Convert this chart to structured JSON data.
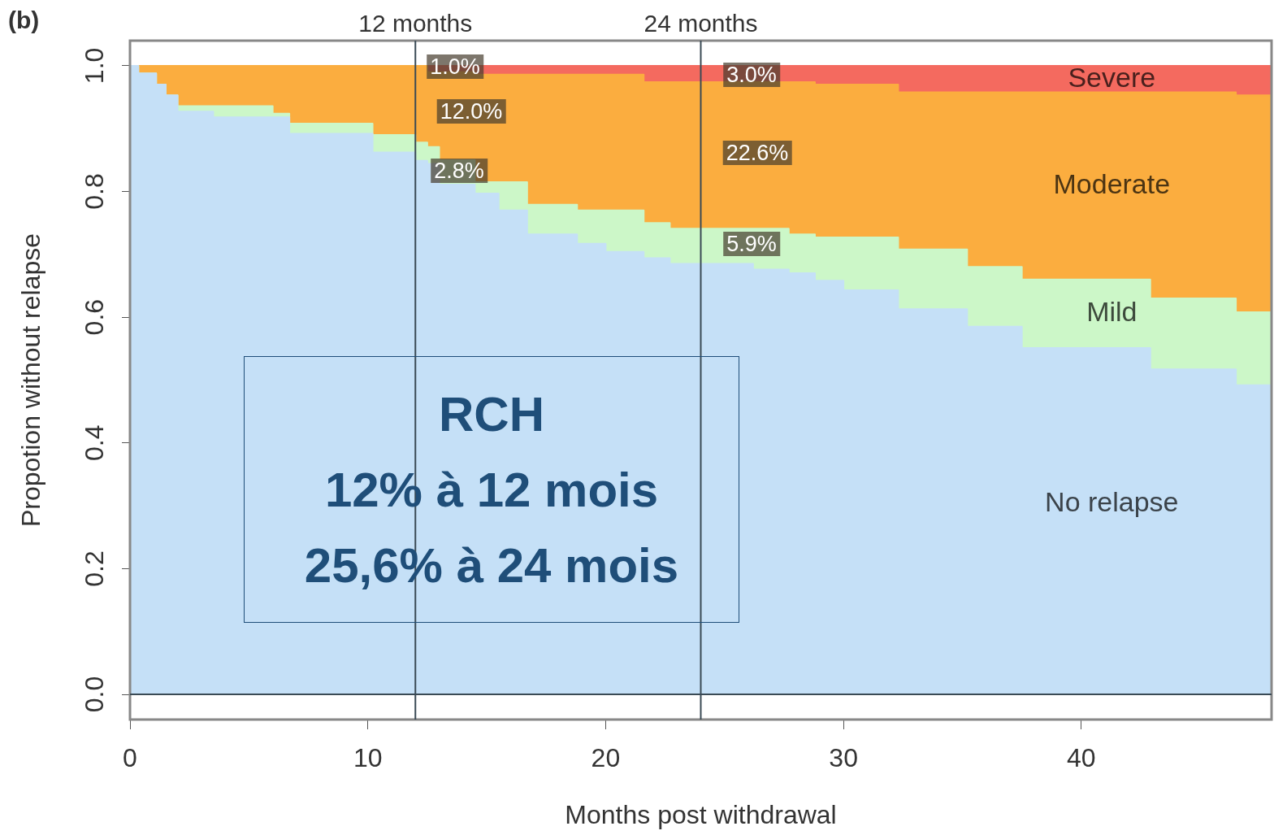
{
  "chart_data": {
    "type": "area",
    "stacked": true,
    "xlabel": "Months post withdrawal",
    "ylabel": "Propotion without relapse",
    "x": [
      0,
      0.35,
      1.1,
      1.5,
      2,
      3.5,
      6,
      6.7,
      10.2,
      12,
      12.5,
      13,
      14.5,
      15.5,
      16.7,
      18.8,
      20,
      21.6,
      22.7,
      26.2,
      27.7,
      28.8,
      30,
      32.3,
      35.2,
      37.5,
      42.9,
      46.5,
      48
    ],
    "series": [
      {
        "name": "No relapse",
        "color": "#c5e0f7",
        "values": [
          1,
          0.988,
          0.97,
          0.953,
          0.927,
          0.918,
          0.918,
          0.892,
          0.862,
          0.849,
          0.844,
          0.811,
          0.797,
          0.77,
          0.732,
          0.717,
          0.704,
          0.694,
          0.685,
          0.676,
          0.67,
          0.658,
          0.643,
          0.613,
          0.585,
          0.551,
          0.517,
          0.492,
          0.492
        ]
      },
      {
        "name": "Mild",
        "color": "#ccf7c8",
        "values": [
          0,
          0,
          0,
          0,
          0.009,
          0.018,
          0.006,
          0.016,
          0.028,
          0.029,
          0.027,
          0.039,
          0.018,
          0.045,
          0.047,
          0.053,
          0.066,
          0.056,
          0.056,
          0.065,
          0.062,
          0.069,
          0.084,
          0.095,
          0.095,
          0.109,
          0.113,
          0.116,
          0.116
        ]
      },
      {
        "name": "Moderate",
        "color": "#fbad3f",
        "values": [
          0,
          0.012,
          0.03,
          0.047,
          0.064,
          0.064,
          0.076,
          0.092,
          0.11,
          0.122,
          0.119,
          0.14,
          0.171,
          0.171,
          0.207,
          0.216,
          0.216,
          0.224,
          0.233,
          0.233,
          0.242,
          0.243,
          0.243,
          0.25,
          0.278,
          0.298,
          0.328,
          0.345,
          0.345
        ]
      },
      {
        "name": "Severe",
        "color": "#f46a5f",
        "values": [
          0,
          0,
          0,
          0,
          0,
          0,
          0,
          0,
          0,
          0,
          0.01,
          0.01,
          0.014,
          0.014,
          0.014,
          0.014,
          0.014,
          0.026,
          0.026,
          0.026,
          0.026,
          0.03,
          0.03,
          0.042,
          0.042,
          0.042,
          0.042,
          0.047,
          0.047
        ]
      }
    ],
    "xlim": [
      0,
      48
    ],
    "xticks": [
      0,
      10,
      20,
      30,
      40
    ],
    "ylim": [
      -0.04,
      1.04
    ],
    "yticks": [
      {
        "value": 0,
        "label": "0.0"
      },
      {
        "value": 0.2,
        "label": "0.2"
      },
      {
        "value": 0.4,
        "label": "0.4"
      },
      {
        "value": 0.6,
        "label": "0.6"
      },
      {
        "value": 0.8,
        "label": "0.8"
      },
      {
        "value": 1,
        "label": "1.0"
      }
    ],
    "ref_lines": [
      {
        "axis": "x",
        "value": 12,
        "label": "12 months"
      },
      {
        "axis": "x",
        "value": 24,
        "label": "24 months"
      },
      {
        "axis": "y",
        "value": 0
      }
    ],
    "annotations": [
      "(b)",
      "RCH\n12% à 12 mois\n25,6% à 24 mois",
      "1.0%",
      "12.0%",
      "2.8%",
      "3.0%",
      "22.6%",
      "5.9%"
    ],
    "legend": false
  }
}
